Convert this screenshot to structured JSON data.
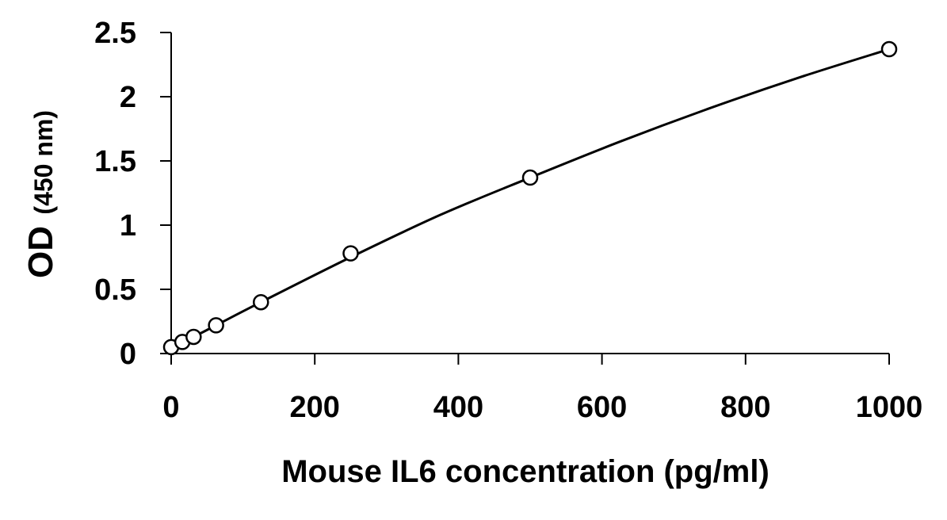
{
  "chart_data": {
    "type": "scatter",
    "xlabel": "Mouse IL6 concentration (pg/ml)",
    "ylabel": {
      "main": "OD",
      "sub": "(450 nm)"
    },
    "xlim": [
      0,
      1000
    ],
    "ylim": [
      0,
      2.5
    ],
    "x_ticks": [
      0,
      200,
      400,
      600,
      800,
      1000
    ],
    "x_tick_labels": [
      "0",
      "200",
      "400",
      "600",
      "800",
      "1000"
    ],
    "y_ticks": [
      0,
      0.5,
      1,
      1.5,
      2,
      2.5
    ],
    "y_tick_labels": [
      "0",
      "0.5",
      "1",
      "1.5",
      "2",
      "2.5"
    ],
    "grid": false,
    "legend": "none",
    "series": [
      {
        "marker": "open-circle",
        "x": [
          0,
          15.6,
          31.25,
          62.5,
          125,
          250,
          500,
          1000
        ],
        "y": [
          0.05,
          0.09,
          0.13,
          0.22,
          0.4,
          0.78,
          1.37,
          2.37
        ]
      }
    ],
    "fit_curve": {
      "x": [
        0,
        15.6,
        31.25,
        62.5,
        125,
        250,
        375,
        500,
        625,
        750,
        875,
        1000
      ],
      "y": [
        0.05,
        0.09,
        0.13,
        0.22,
        0.4,
        0.75,
        1.08,
        1.37,
        1.65,
        1.91,
        2.15,
        2.37
      ]
    },
    "colors": {
      "axis": "#000000",
      "marker": "#000000",
      "curve": "#000000",
      "background": "#ffffff"
    }
  }
}
